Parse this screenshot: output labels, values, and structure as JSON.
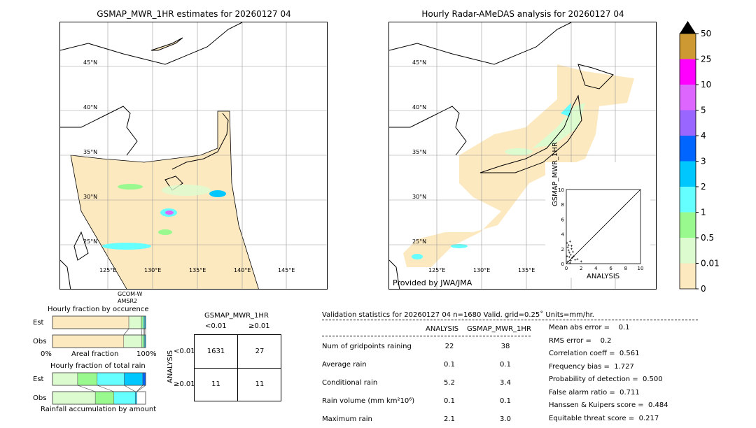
{
  "left_map": {
    "title": "GSMAP_MWR_1HR estimates for 20260127 04",
    "lat_labels": [
      "45°N",
      "40°N",
      "35°N",
      "30°N",
      "25°N"
    ],
    "lon_labels": [
      "125°E",
      "130°E",
      "135°E",
      "140°E",
      "145°E"
    ],
    "sensor_label": [
      "GCOM-W",
      "AMSR2"
    ]
  },
  "right_map": {
    "title": "Hourly Radar-AMeDAS analysis for 20260127 04",
    "lat_labels": [
      "45°N",
      "40°N",
      "35°N",
      "30°N",
      "25°N"
    ],
    "lon_labels": [
      "125°E",
      "130°E",
      "135°E"
    ],
    "credit": "Provided by JWA/JMA"
  },
  "scatter_inset": {
    "xlabel": "ANALYSIS",
    "ylabel": "GSMAP_MWR_1HR",
    "ticks": [
      "0",
      "2",
      "4",
      "6",
      "8",
      "10"
    ]
  },
  "colorbar": {
    "labels": [
      "50",
      "25",
      "10",
      "5",
      "4",
      "3",
      "2",
      "1",
      "0.5",
      "0.01",
      "0"
    ],
    "colors": [
      "#cc9933",
      "#ff00ff",
      "#dd66ff",
      "#9966ff",
      "#0064ff",
      "#00c8ff",
      "#66ffff",
      "#99f98f",
      "#dcfcd0",
      "#fde9c0"
    ],
    "over_color": "#000000"
  },
  "occurrence_chart": {
    "title": "Hourly fraction by occurence",
    "rows": [
      "Est",
      "Obs"
    ],
    "xlabel": "Areal fraction",
    "x_min_label": "0%",
    "x_max_label": "100%"
  },
  "total_rain_chart": {
    "title": "Hourly fraction of total rain",
    "rows": [
      "Est",
      "Obs"
    ],
    "xlabel": "Rainfall accumulation by amount"
  },
  "contingency": {
    "title": "GSMAP_MWR_1HR",
    "col_labels": [
      "<0.01",
      "≥0.01"
    ],
    "row_axis": "ANALYSIS",
    "row_labels": [
      "<0.01",
      "≥0.01"
    ],
    "cells": [
      [
        "1631",
        "27"
      ],
      [
        "11",
        "11"
      ]
    ]
  },
  "validation": {
    "header": "Validation statistics for 20260127 04  n=1680 Valid. grid=0.25˚ Units=mm/hr.",
    "col_headers": [
      "ANALYSIS",
      "GSMAP_MWR_1HR"
    ],
    "rows": [
      {
        "label": "Num of gridpoints raining",
        "analysis": "22",
        "gsmap": "38"
      },
      {
        "label": "Average rain",
        "analysis": "0.1",
        "gsmap": "0.1"
      },
      {
        "label": "Conditional rain",
        "analysis": "5.2",
        "gsmap": "3.4"
      },
      {
        "label": "Rain volume (mm km²10⁶)",
        "analysis": "0.1",
        "gsmap": "0.1"
      },
      {
        "label": "Maximum rain",
        "analysis": "2.1",
        "gsmap": "3.0"
      }
    ],
    "scores": [
      "Mean abs error =    0.1",
      "RMS error =    0.2",
      "Correlation coeff =  0.561",
      "Frequency bias =  1.727",
      "Probability of detection =  0.500",
      "False alarm ratio =  0.711",
      "Hanssen & Kuipers score =  0.484",
      "Equitable threat score =  0.217"
    ]
  },
  "chart_data": [
    {
      "type": "bar",
      "title": "Hourly fraction by occurence",
      "orientation": "horizontal-stacked",
      "categories": [
        "Est",
        "Obs"
      ],
      "xlabel": "Areal fraction",
      "xlim": [
        0,
        100
      ],
      "series": [
        {
          "color": "#fde9c0",
          "values": [
            82,
            76.5
          ]
        },
        {
          "color": "#dcfcd0",
          "values": [
            13.5,
            19.5
          ]
        },
        {
          "color": "#99f98f",
          "values": [
            2,
            2
          ]
        },
        {
          "color": "#66ffff",
          "values": [
            1.5,
            1
          ]
        },
        {
          "color": "#00c8ff",
          "values": [
            1,
            1
          ]
        }
      ]
    },
    {
      "type": "bar",
      "title": "Hourly fraction of total rain",
      "orientation": "horizontal-stacked",
      "categories": [
        "Est",
        "Obs"
      ],
      "xlabel": "Rainfall accumulation by amount",
      "xlim": [
        0,
        100
      ],
      "series": [
        {
          "color": "#dcfcd0",
          "values": [
            27,
            46
          ]
        },
        {
          "color": "#99f98f",
          "values": [
            21,
            20
          ]
        },
        {
          "color": "#66ffff",
          "values": [
            29,
            23
          ]
        },
        {
          "color": "#00c8ff",
          "values": [
            20,
            1.5
          ]
        },
        {
          "color": "#0064ff",
          "values": [
            3,
            0
          ]
        }
      ]
    },
    {
      "type": "scatter",
      "xlabel": "ANALYSIS",
      "ylabel": "GSMAP_MWR_1HR",
      "xlim": [
        0,
        10
      ],
      "ylim": [
        0,
        10
      ],
      "x": [
        0.1,
        0.2,
        0.3,
        0.4,
        0.5,
        0.6,
        0.7,
        0.8,
        1.0,
        1.2,
        0.2,
        0.4,
        0.6,
        0.9,
        1.5,
        2.0,
        0.3,
        0.5,
        0.1,
        0.7
      ],
      "y": [
        2.8,
        2.2,
        1.8,
        1.5,
        3.0,
        1.2,
        2.0,
        0.8,
        1.0,
        0.5,
        0.3,
        0.9,
        0.4,
        1.6,
        0.6,
        0.3,
        2.5,
        0.1,
        1.0,
        2.4
      ]
    }
  ]
}
